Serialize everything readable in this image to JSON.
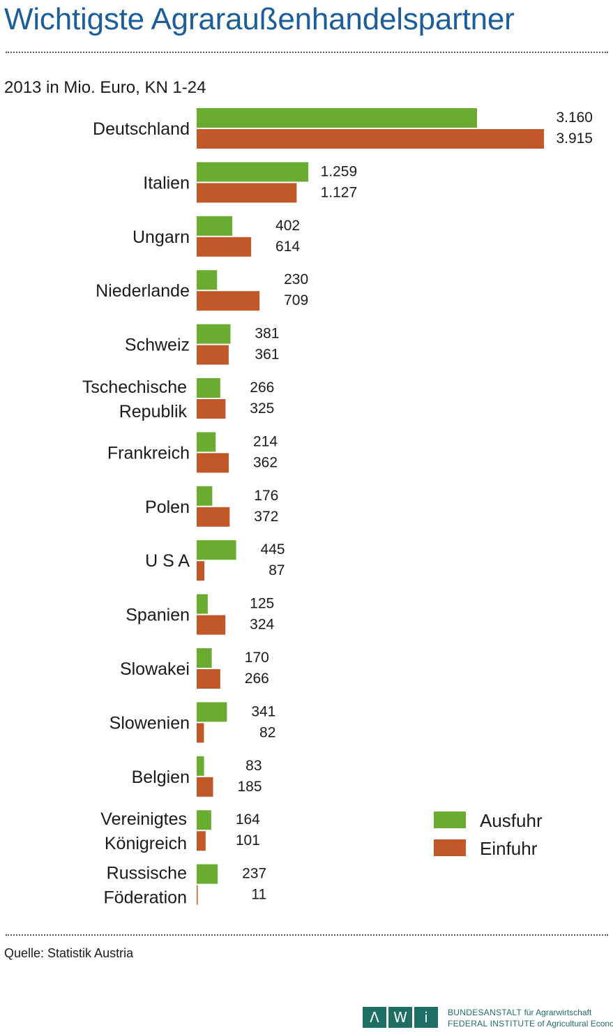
{
  "title": "Wichtigste Agraraußenhandelspartner",
  "subtitle": "2013 in Mio. Euro, KN 1-24",
  "source": "Quelle: Statistik Austria",
  "colors": {
    "title": "#1d5e9a",
    "ausfuhr": "#6aab32",
    "einfuhr": "#c0582a",
    "logo": "#1f6e64"
  },
  "logo": {
    "letters": [
      "Λ",
      "W",
      "i"
    ],
    "line1_caps": "BUNDESANSTALT",
    "line1_rest": " für Agrarwirtschaft",
    "line2_caps": "FEDERAL INSTITUTE",
    "line2_rest": " of Agricultural Economics"
  },
  "chart_data": {
    "type": "bar",
    "orientation": "horizontal",
    "title": "Wichtigste Agraraußenhandelspartner",
    "subtitle": "2013 in Mio. Euro, KN 1-24",
    "legend": "right",
    "grid": false,
    "categories": [
      [
        "Deutschland"
      ],
      [
        "Italien"
      ],
      [
        "Ungarn"
      ],
      [
        "Niederlande"
      ],
      [
        "Schweiz"
      ],
      [
        "Tschechische",
        "Republik"
      ],
      [
        "Frankreich"
      ],
      [
        "Polen"
      ],
      [
        "U S A"
      ],
      [
        "Spanien"
      ],
      [
        "Slowakei"
      ],
      [
        "Slowenien"
      ],
      [
        "Belgien"
      ],
      [
        "Vereinigtes",
        "Königreich"
      ],
      [
        "Russische",
        "Föderation"
      ]
    ],
    "series": [
      {
        "name": "Ausfuhr",
        "color": "#6aab32",
        "values": [
          3160,
          1259,
          402,
          230,
          381,
          266,
          214,
          176,
          445,
          125,
          170,
          341,
          83,
          164,
          237
        ],
        "labels": [
          "3.160",
          "1.259",
          "402",
          "230",
          "381",
          "266",
          "214",
          "176",
          "445",
          "125",
          "170",
          "341",
          "83",
          "164",
          "237"
        ]
      },
      {
        "name": "Einfuhr",
        "color": "#c0582a",
        "values": [
          3915,
          1127,
          614,
          709,
          361,
          325,
          362,
          372,
          87,
          324,
          266,
          82,
          185,
          101,
          11
        ],
        "labels": [
          "3.915",
          "1.127",
          "614",
          "709",
          "361",
          "325",
          "362",
          "372",
          "87",
          "324",
          "266",
          "82",
          "185",
          "101",
          "11"
        ]
      }
    ]
  }
}
